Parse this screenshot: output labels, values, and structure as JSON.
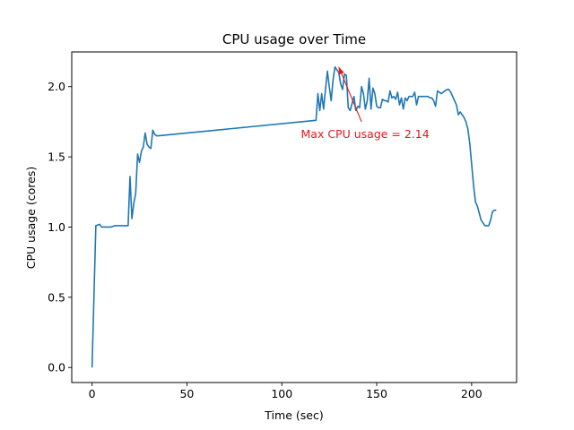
{
  "chart_data": {
    "type": "line",
    "title": "CPU usage over Time",
    "xlabel": "Time (sec)",
    "ylabel": "CPU usage (cores)",
    "xlim": [
      -10.7,
      223.7
    ],
    "ylim": [
      -0.107,
      2.247
    ],
    "xticks": [
      0,
      50,
      100,
      150,
      200
    ],
    "yticks": [
      0.0,
      0.5,
      1.0,
      1.5,
      2.0
    ],
    "xtick_labels": [
      "0",
      "50",
      "100",
      "150",
      "200"
    ],
    "ytick_labels": [
      "0.0",
      "0.5",
      "1.0",
      "1.5",
      "2.0"
    ],
    "grid": false,
    "line_color": "#1f77b4",
    "series": [
      {
        "x": [
          0,
          2,
          4,
          5,
          10,
          12,
          15,
          18,
          19,
          20,
          21,
          22,
          23,
          24,
          25,
          26,
          27,
          28,
          29,
          30,
          31,
          32,
          33,
          34,
          35,
          118,
          119,
          120,
          121,
          122,
          123,
          124,
          125,
          126,
          127,
          128,
          129,
          130,
          131,
          132,
          133,
          134,
          135,
          136,
          137,
          138,
          139,
          140,
          141,
          142,
          143,
          144,
          145,
          146,
          147,
          148,
          149,
          150,
          151,
          152,
          153,
          154,
          155,
          156,
          157,
          158,
          159,
          160,
          161,
          162,
          163,
          164,
          165,
          166,
          167,
          168,
          169,
          170,
          171,
          172,
          173,
          174,
          175,
          176,
          177,
          178,
          179,
          180,
          181,
          182,
          183,
          184,
          185,
          186,
          187,
          188,
          189,
          190,
          191,
          192,
          193,
          194,
          195,
          196,
          197,
          198,
          199,
          200,
          201,
          202,
          203,
          204,
          205,
          206,
          207,
          208,
          209,
          210,
          211,
          212,
          213
        ],
        "y": [
          0.0,
          1.01,
          1.02,
          1.0,
          1.0,
          1.01,
          1.01,
          1.01,
          1.01,
          1.36,
          1.06,
          1.17,
          1.24,
          1.52,
          1.46,
          1.54,
          1.57,
          1.67,
          1.59,
          1.57,
          1.56,
          1.69,
          1.66,
          1.65,
          1.65,
          1.76,
          1.95,
          1.83,
          1.95,
          1.84,
          1.98,
          2.11,
          2.0,
          1.9,
          2.05,
          2.14,
          2.12,
          2.1,
          2.02,
          1.98,
          2.09,
          2.08,
          1.85,
          1.83,
          1.88,
          1.93,
          1.83,
          1.86,
          1.85,
          2.0,
          1.95,
          1.84,
          1.9,
          2.06,
          1.84,
          1.99,
          1.95,
          1.86,
          1.85,
          1.85,
          1.91,
          1.9,
          1.9,
          1.89,
          1.97,
          1.92,
          1.93,
          1.91,
          1.96,
          1.87,
          1.92,
          1.84,
          1.92,
          1.9,
          1.93,
          1.93,
          1.93,
          1.96,
          1.87,
          1.93,
          1.93,
          1.93,
          1.93,
          1.93,
          1.93,
          1.92,
          1.92,
          1.9,
          1.86,
          1.97,
          1.96,
          1.95,
          1.96,
          1.97,
          1.98,
          1.98,
          1.96,
          1.93,
          1.9,
          1.87,
          1.8,
          1.82,
          1.8,
          1.78,
          1.75,
          1.7,
          1.6,
          1.45,
          1.3,
          1.18,
          1.15,
          1.1,
          1.05,
          1.03,
          1.01,
          1.01,
          1.01,
          1.05,
          1.11,
          1.12,
          1.12
        ]
      }
    ],
    "annotation": {
      "text": "Max CPU usage = 2.14",
      "color": "#e41a1c",
      "point": [
        130,
        2.14
      ],
      "text_anchor": [
        142,
        1.75
      ]
    }
  }
}
